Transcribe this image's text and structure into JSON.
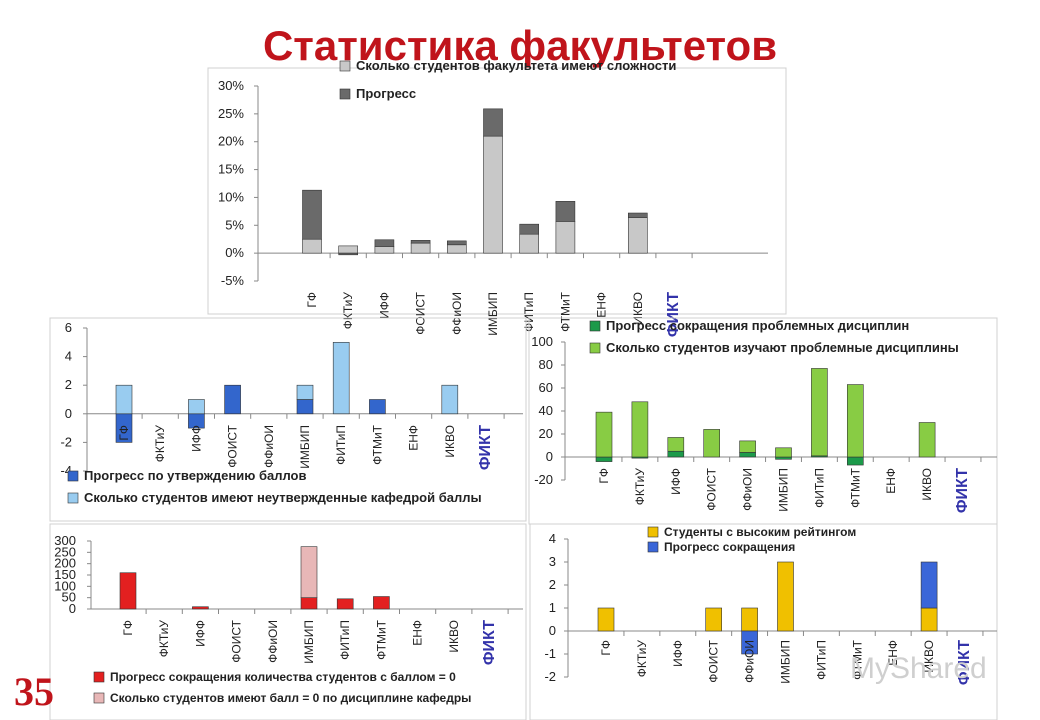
{
  "title": "Статистика факультетов",
  "slide_number": "35",
  "watermark": "MyShared",
  "colors": {
    "title": "#c0141b",
    "highlight_label": "#3333aa",
    "grey_light": "#c8c8c8",
    "grey_dark": "#6a6a6a",
    "blue_light": "#99ccf0",
    "blue_dark": "#3366cc",
    "green_light": "#88cc44",
    "green_dark": "#1c9a4a",
    "red_dark": "#e32020",
    "red_light": "#e8b7b7",
    "yellow": "#f0c000",
    "blue_progress": "#3a66d8"
  },
  "chart_data": [
    {
      "type": "bar",
      "stacked": true,
      "title": "",
      "categories": [
        "ГФ",
        "ФКТиУ",
        "ИФФ",
        "ФОИСТ",
        "ФФиОИ",
        "ИМБИП",
        "ФИТиП",
        "ФТМиТ",
        "ЕНФ",
        "ИКВО",
        "ФИКТ"
      ],
      "highlight_category": "ФИКТ",
      "yticks": [
        "30%",
        "25%",
        "20%",
        "15%",
        "10%",
        "5%",
        "0%",
        "-5%"
      ],
      "ylim": [
        -5,
        30
      ],
      "series": [
        {
          "name": "Сколько студентов факультета имеют сложности",
          "color": "#c8c8c8",
          "values": [
            2.5,
            1.3,
            1.2,
            1.8,
            1.5,
            21.0,
            3.4,
            5.7,
            0,
            6.4,
            0
          ]
        },
        {
          "name": "Прогресс",
          "color": "#6a6a6a",
          "values": [
            8.8,
            -0.3,
            1.2,
            0.5,
            0.7,
            4.9,
            1.8,
            3.6,
            0,
            0.8,
            0
          ]
        }
      ]
    },
    {
      "type": "bar",
      "stacked": true,
      "title": "",
      "categories": [
        "ГФ",
        "ФКТиУ",
        "ИФФ",
        "ФОИСТ",
        "ФФиОИ",
        "ИМБИП",
        "ФИТиП",
        "ФТМиТ",
        "ЕНФ",
        "ИКВО",
        "ФИКТ"
      ],
      "highlight_category": "ФИКТ",
      "yticks": [
        "6",
        "4",
        "2",
        "0",
        "-2",
        "-4"
      ],
      "ylim": [
        -4,
        6
      ],
      "series": [
        {
          "name": "Прогресс по утверждению баллов",
          "color": "#3366cc",
          "values": [
            -2,
            0,
            -1,
            2,
            0,
            1,
            0,
            1,
            0,
            0,
            0
          ]
        },
        {
          "name": "Сколько студентов имеют неутвержденные кафедрой баллы",
          "color": "#99ccf0",
          "values": [
            2,
            0,
            1,
            0,
            0,
            1,
            5,
            0,
            0,
            2,
            0
          ]
        }
      ]
    },
    {
      "type": "bar",
      "stacked": true,
      "title": "",
      "categories": [
        "ГФ",
        "ФКТиУ",
        "ИФФ",
        "ФОИСТ",
        "ФФиОИ",
        "ИМБИП",
        "ФИТиП",
        "ФТМиТ",
        "ЕНФ",
        "ИКВО",
        "ФИКТ"
      ],
      "highlight_category": "ФИКТ",
      "yticks": [
        "100",
        "80",
        "60",
        "40",
        "20",
        "0",
        "-20"
      ],
      "ylim": [
        -20,
        100
      ],
      "series": [
        {
          "name": "Прогресс сокращения проблемных дисциплин",
          "color": "#1c9a4a",
          "values": [
            -4,
            -1,
            5,
            0,
            4,
            -2,
            1,
            -7,
            0,
            0,
            0
          ]
        },
        {
          "name": "Сколько студентов изучают проблемные дисциплины",
          "color": "#88cc44",
          "values": [
            39,
            48,
            12,
            24,
            10,
            8,
            76,
            63,
            0,
            30,
            0
          ]
        }
      ]
    },
    {
      "type": "bar",
      "stacked": true,
      "title": "",
      "categories": [
        "ГФ",
        "ФКТиУ",
        "ИФФ",
        "ФОИСТ",
        "ФФиОИ",
        "ИМБИП",
        "ФИТиП",
        "ФТМиТ",
        "ЕНФ",
        "ИКВО",
        "ФИКТ"
      ],
      "highlight_category": "ФИКТ",
      "yticks": [
        "300",
        "250",
        "200",
        "150",
        "100",
        "50",
        "0"
      ],
      "ylim": [
        0,
        300
      ],
      "series": [
        {
          "name": "Прогресс сокращения количества студентов с баллом = 0",
          "color": "#e32020",
          "values": [
            160,
            0,
            10,
            0,
            0,
            50,
            45,
            55,
            0,
            0,
            0
          ]
        },
        {
          "name": "Сколько студентов имеют балл = 0 по дисциплине кафедры",
          "color": "#e8b7b7",
          "values": [
            0,
            0,
            0,
            0,
            0,
            225,
            0,
            0,
            0,
            0,
            0
          ]
        }
      ]
    },
    {
      "type": "bar",
      "stacked": true,
      "title": "",
      "categories": [
        "ГФ",
        "ФКТиУ",
        "ИФФ",
        "ФОИСТ",
        "ФФиОИ",
        "ИМБИП",
        "ФИТиП",
        "ФТМиТ",
        "ЕНФ",
        "ИКВО",
        "ФИКТ"
      ],
      "highlight_category": "ФИКТ",
      "yticks": [
        "4",
        "3",
        "2",
        "1",
        "0",
        "-1",
        "-2"
      ],
      "ylim": [
        -2,
        4
      ],
      "series": [
        {
          "name": "Студенты с высоким рейтингом",
          "color": "#f0c000",
          "values": [
            1,
            0,
            0,
            1,
            1,
            3,
            0,
            0,
            0,
            1,
            0
          ]
        },
        {
          "name": "Прогресс сокращения",
          "color": "#3a66d8",
          "values": [
            0,
            0,
            0,
            0,
            -1,
            0,
            0,
            0,
            0,
            2,
            0
          ]
        }
      ]
    }
  ]
}
